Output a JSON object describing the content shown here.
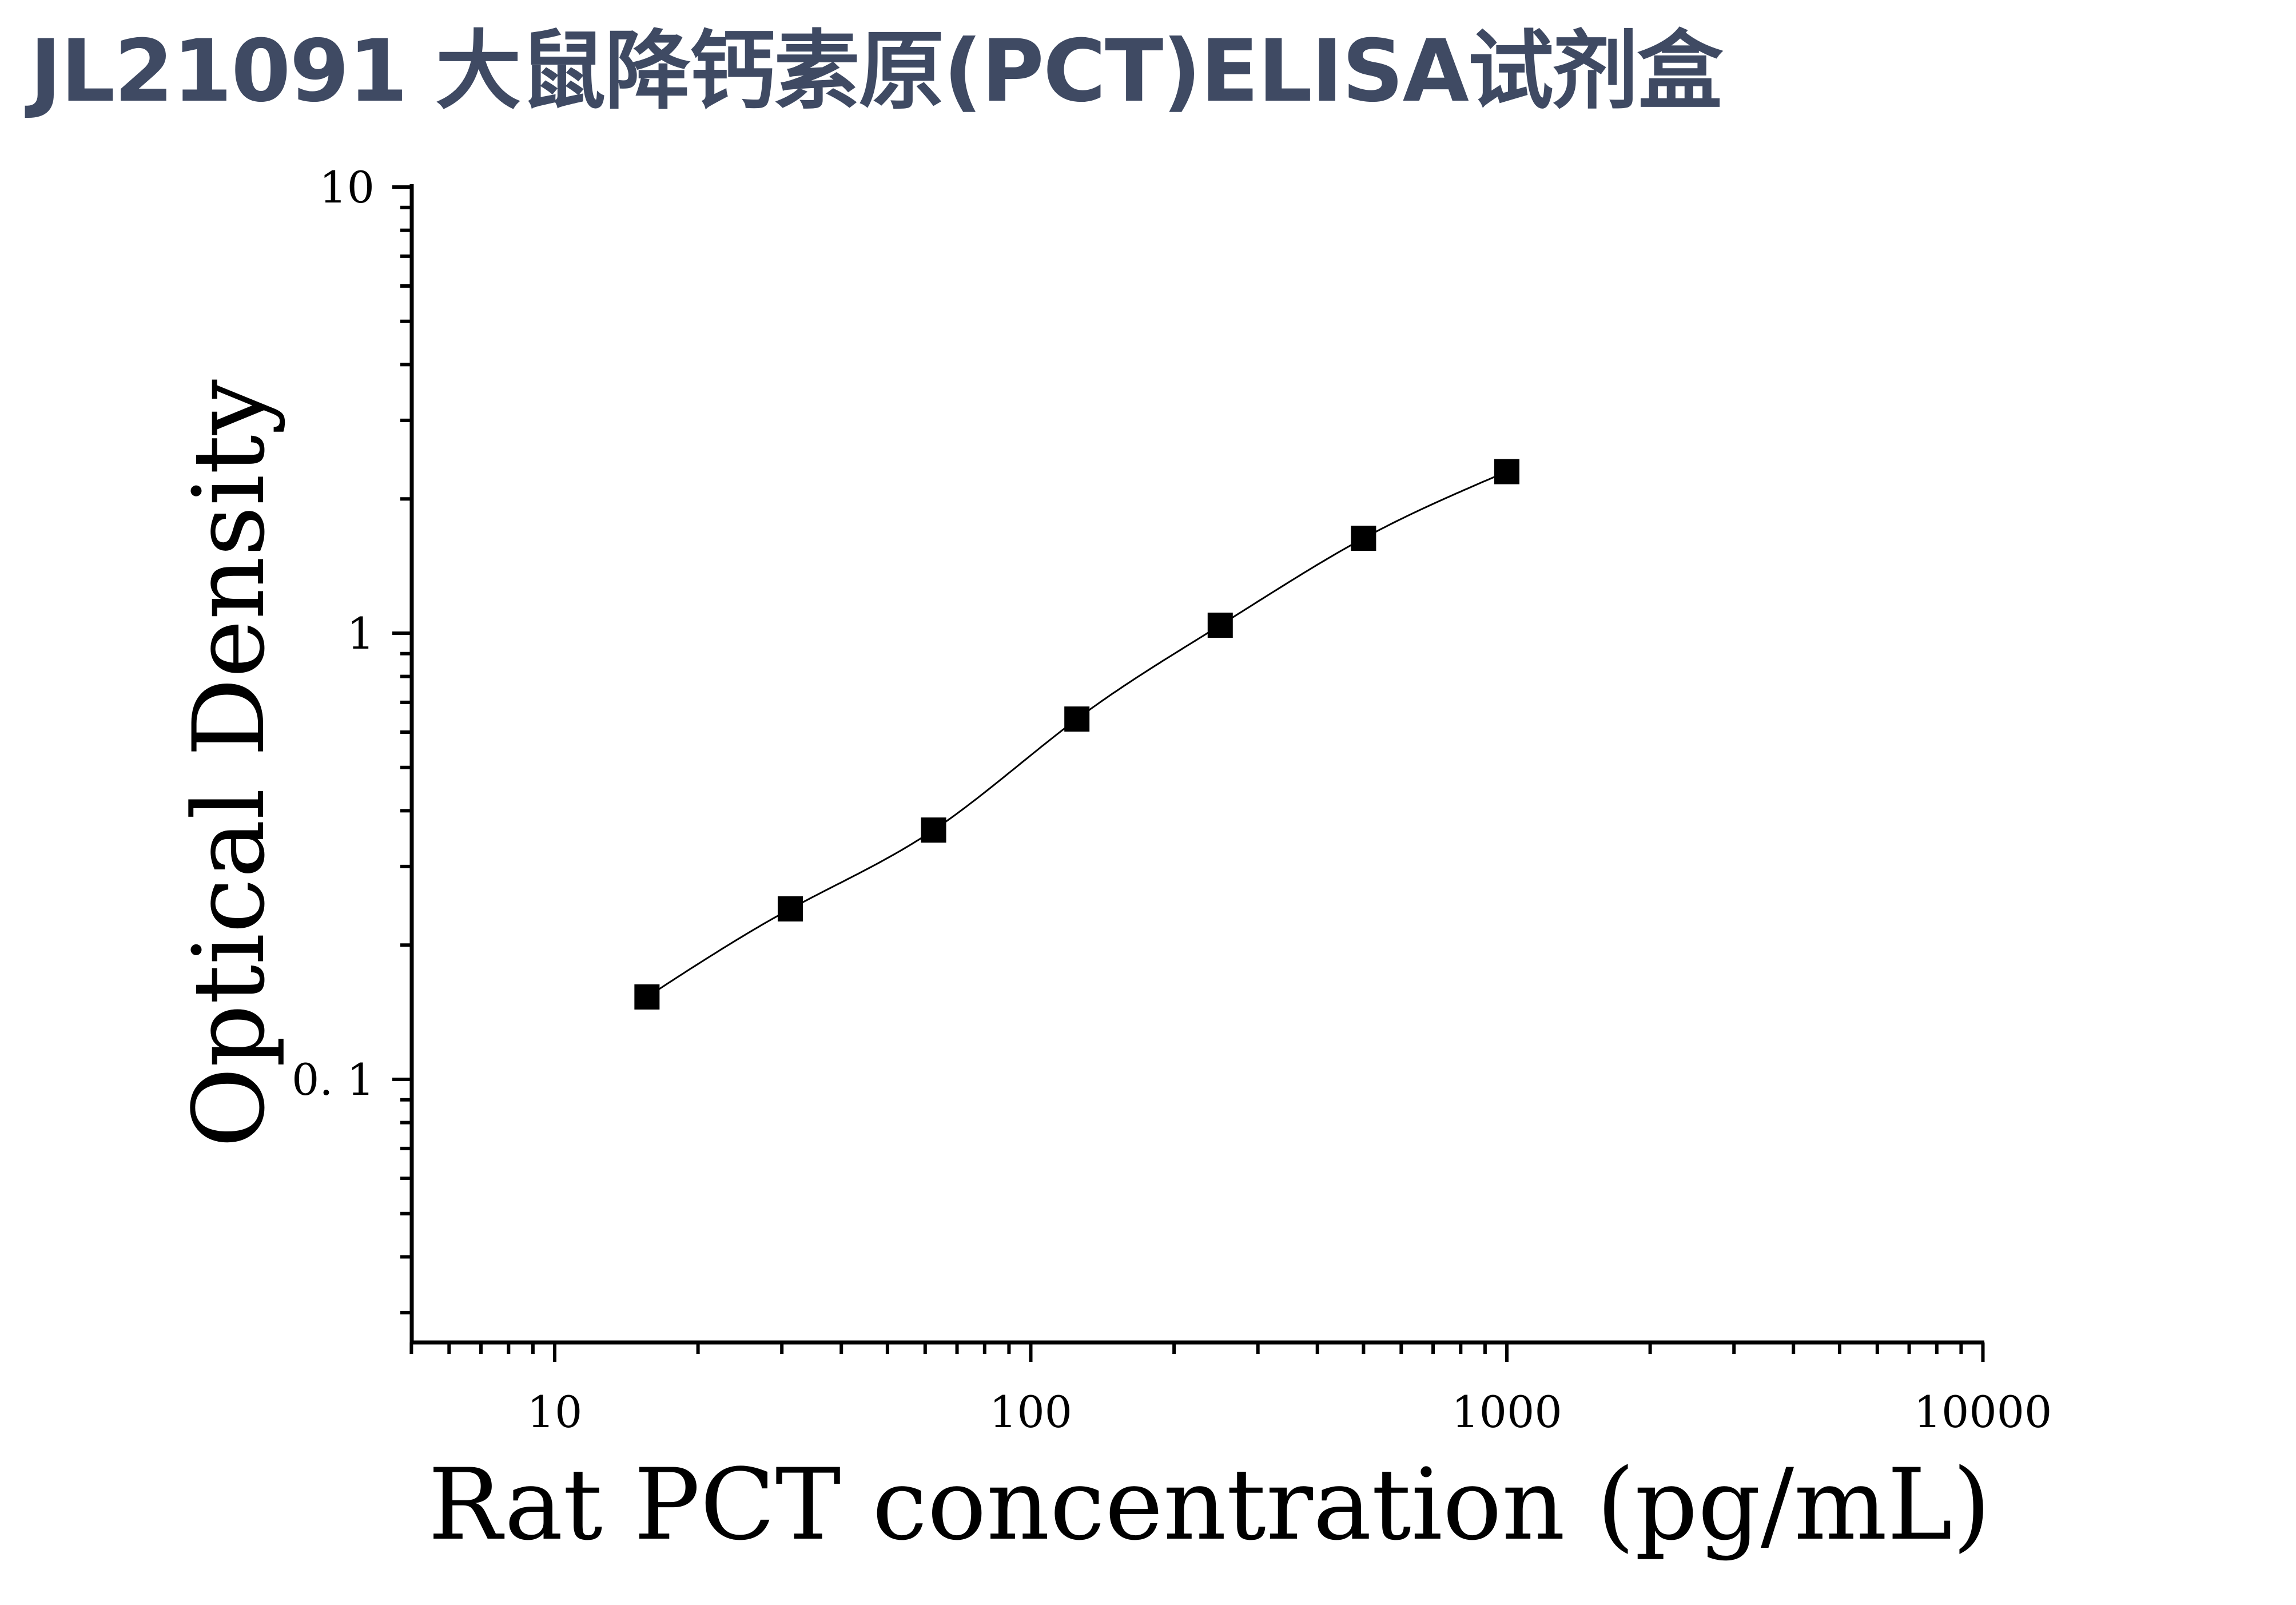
{
  "title": "JL21091 大鼠降钙素原(PCT)ELISA试剂盒",
  "chart_data": {
    "type": "scatter",
    "title": "",
    "xlabel": "Rat PCT concentration (pg/mL)",
    "ylabel": "Optical Density",
    "x_scale": "log",
    "y_scale": "log",
    "xlim": [
      5,
      10000
    ],
    "ylim": [
      0.025,
      10
    ],
    "x_tick_labels": [
      "10",
      "100",
      "1000",
      "10000"
    ],
    "y_tick_labels": [
      "0. 1",
      "1",
      "10"
    ],
    "series": [
      {
        "x": [
          15.625,
          31.25,
          62.5,
          125,
          250,
          500,
          1000
        ],
        "y": [
          0.153,
          0.241,
          0.362,
          0.642,
          1.042,
          1.632,
          2.302
        ],
        "marker": "square",
        "fit_curve": true
      }
    ],
    "grid": false,
    "legend": "none",
    "colors": {
      "marker": "#000000",
      "curve": "#000000",
      "title": "#3f4a63"
    }
  }
}
